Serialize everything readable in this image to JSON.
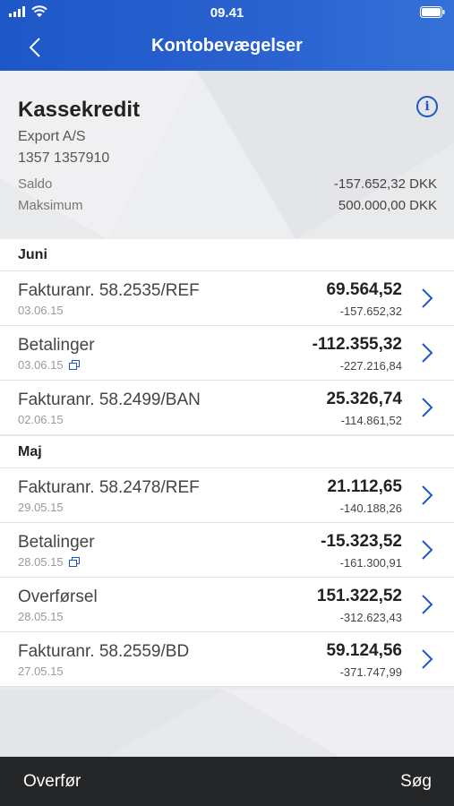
{
  "status_bar": {
    "time": "09.41"
  },
  "nav": {
    "title": "Kontobevægelser"
  },
  "account": {
    "name": "Kassekredit",
    "holder": "Export A/S",
    "number": "1357 1357910",
    "saldo_label": "Saldo",
    "saldo_value": "-157.652,32 DKK",
    "max_label": "Maksimum",
    "max_value": "500.000,00 DKK"
  },
  "sections": [
    {
      "header": "Juni",
      "rows": [
        {
          "title": "Fakturanr. 58.2535/REF",
          "date": "03.06.15",
          "amount": "69.564,52",
          "balance": "-157.652,32",
          "multi": false
        },
        {
          "title": "Betalinger",
          "date": "03.06.15",
          "amount": "-112.355,32",
          "balance": "-227.216,84",
          "multi": true
        },
        {
          "title": "Fakturanr. 58.2499/BAN",
          "date": "02.06.15",
          "amount": "25.326,74",
          "balance": "-114.861,52",
          "multi": false
        }
      ]
    },
    {
      "header": "Maj",
      "rows": [
        {
          "title": "Fakturanr. 58.2478/REF",
          "date": "29.05.15",
          "amount": "21.112,65",
          "balance": "-140.188,26",
          "multi": false
        },
        {
          "title": "Betalinger",
          "date": "28.05.15",
          "amount": "-15.323,52",
          "balance": "-161.300,91",
          "multi": true
        },
        {
          "title": "Overførsel",
          "date": "28.05.15",
          "amount": "151.322,52",
          "balance": "-312.623,43",
          "multi": false
        },
        {
          "title": "Fakturanr. 58.2559/BD",
          "date": "27.05.15",
          "amount": "59.124,56",
          "balance": "-371.747,99",
          "multi": false
        }
      ]
    }
  ],
  "bottom": {
    "left": "Overfør",
    "right": "Søg"
  },
  "colors": {
    "accent": "#1e57c7",
    "bottom_bar": "#252628"
  },
  "icons": {
    "back": "chevron-left-icon",
    "info": "info-icon",
    "row": "chevron-right-icon",
    "multi": "copy-icon"
  }
}
